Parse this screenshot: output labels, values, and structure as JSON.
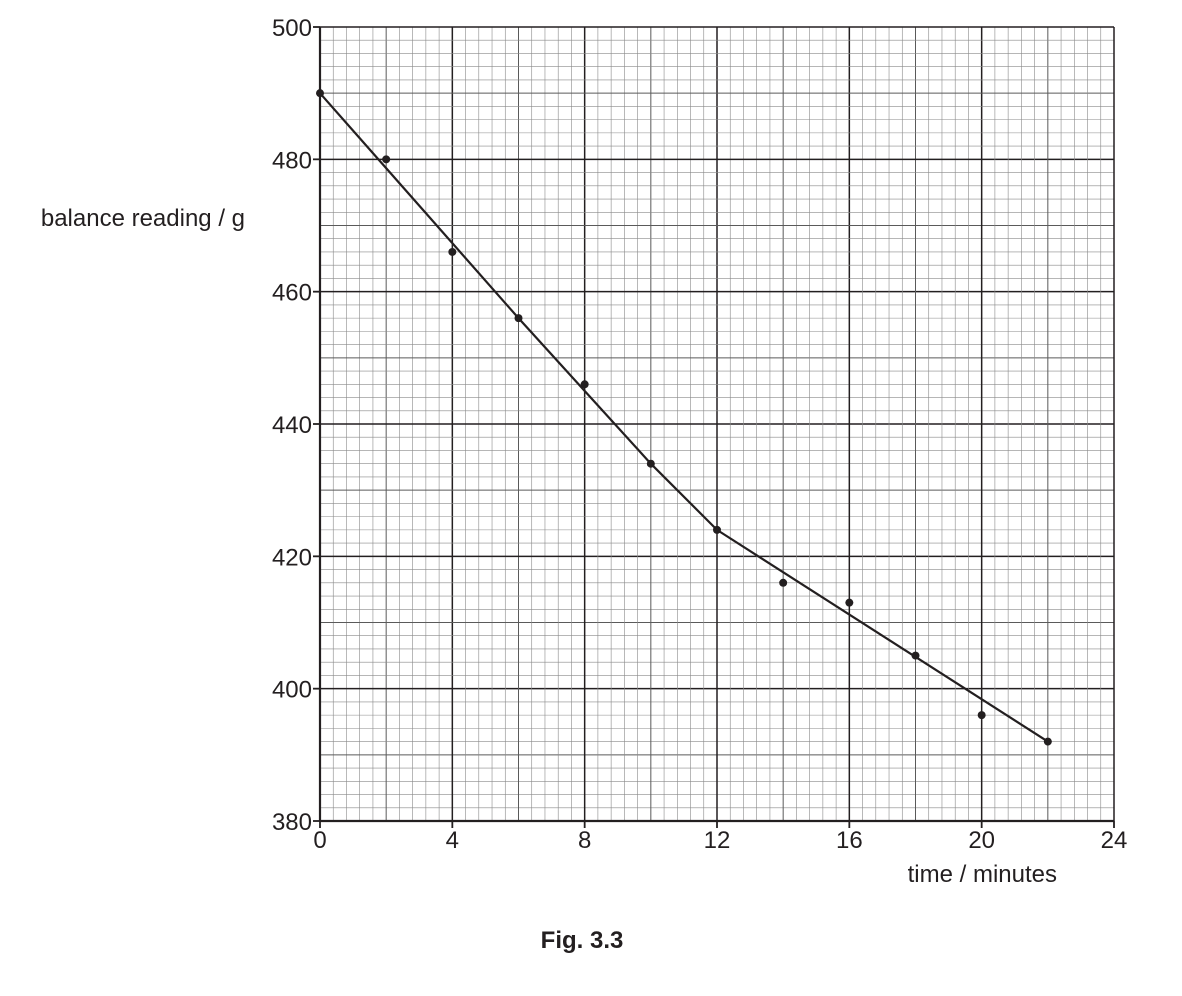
{
  "chart_data": {
    "type": "scatter",
    "title": "",
    "caption": "Fig. 3.3",
    "xlabel": "time / minutes",
    "ylabel": "balance reading / g",
    "xlim": [
      0,
      24
    ],
    "ylim": [
      380,
      500
    ],
    "x_ticks": [
      0,
      4,
      8,
      12,
      16,
      20,
      24
    ],
    "y_ticks": [
      380,
      400,
      420,
      440,
      460,
      480,
      500
    ],
    "grid": "graph paper (major every 4 min / 20 g, minor every 0.4 min / 2 g)",
    "colors": {
      "ink": "#231f20",
      "grid_minor": "#8a8a8a",
      "grid_mid": "#5a5a5a",
      "grid_major": "#231f20"
    },
    "series": [
      {
        "kind": "points",
        "x": [
          0,
          2,
          4,
          6,
          8,
          10,
          12,
          14,
          16,
          18,
          20,
          22
        ],
        "y": [
          490,
          480,
          466,
          456,
          446,
          434,
          424,
          416,
          413,
          405,
          396,
          392
        ]
      },
      {
        "kind": "best-fit line",
        "x": [
          0,
          6,
          10,
          12,
          22
        ],
        "y": [
          490,
          456,
          434,
          424,
          392
        ]
      }
    ]
  }
}
